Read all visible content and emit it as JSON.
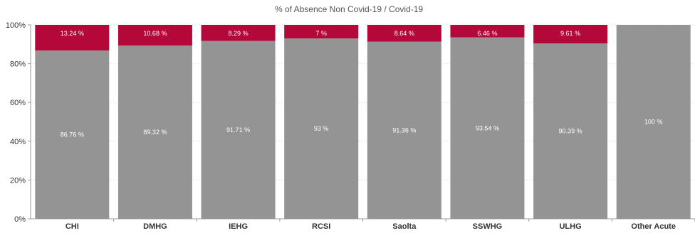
{
  "chart_data": {
    "type": "bar",
    "stacked": true,
    "title": "% of Absence Non Covid-19 / Covid-19",
    "xlabel": "",
    "ylabel": "",
    "ylim": [
      0,
      100
    ],
    "yticks": [
      "0%",
      "20%",
      "40%",
      "60%",
      "80%",
      "100%"
    ],
    "grid": true,
    "categories": [
      "CHI",
      "DMHG",
      "IEHG",
      "RCSI",
      "Saolta",
      "SSWHG",
      "ULHG",
      "Other Acute"
    ],
    "series": [
      {
        "color": "#949494",
        "values": [
          86.76,
          89.32,
          91.71,
          93,
          91.36,
          93.54,
          90.39,
          100
        ],
        "labels": [
          "86.76 %",
          "89.32 %",
          "91.71 %",
          "93 %",
          "91.36 %",
          "93.54 %",
          "90.39 %",
          "100 %"
        ]
      },
      {
        "color": "#b5083a",
        "values": [
          13.24,
          10.68,
          8.29,
          7,
          8.64,
          6.46,
          9.61,
          0
        ],
        "labels": [
          "13.24 %",
          "10.68 %",
          "8.29 %",
          "7 %",
          "8.64 %",
          "6.46 %",
          "9.61 %",
          ""
        ]
      }
    ]
  }
}
